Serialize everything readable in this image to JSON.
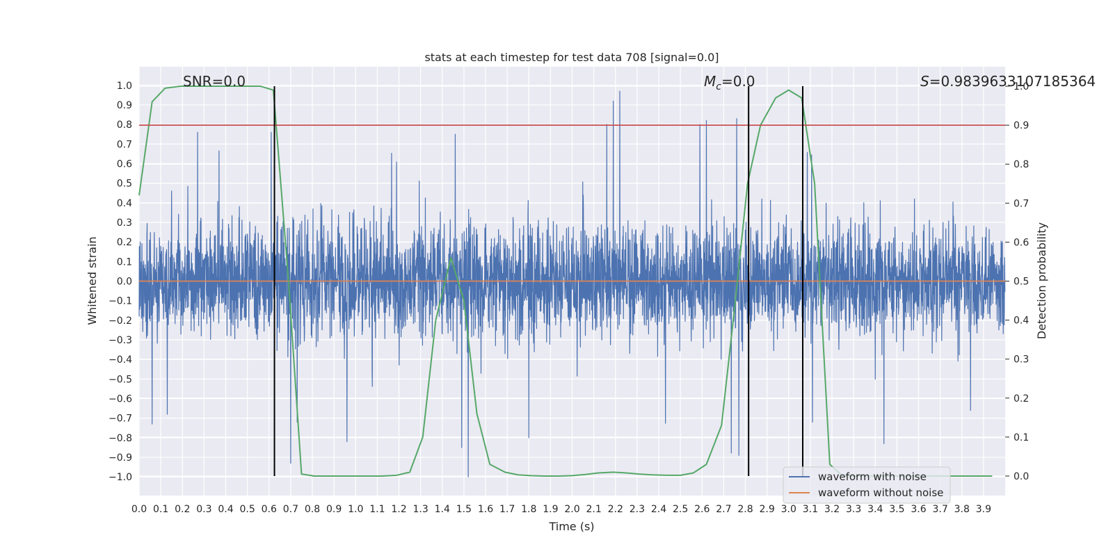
{
  "chart_data": {
    "type": "line",
    "title": "stats at each timestep for test data 708 [signal=0.0]",
    "xlabel": "Time (s)",
    "ylabel": "Whitened strain",
    "y2label": "Detection probability",
    "xlim": [
      0.0,
      4.0
    ],
    "ylim": [
      -1.095,
      1.095
    ],
    "y2lim": [
      -0.05,
      1.05
    ],
    "x_ticks": [
      "0.0",
      "0.1",
      "0.2",
      "0.3",
      "0.4",
      "0.5",
      "0.6",
      "0.7",
      "0.8",
      "0.9",
      "1.0",
      "1.1",
      "1.2",
      "1.3",
      "1.4",
      "1.5",
      "1.6",
      "1.7",
      "1.8",
      "1.9",
      "2.0",
      "2.1",
      "2.2",
      "2.3",
      "2.4",
      "2.5",
      "2.6",
      "2.7",
      "2.8",
      "2.9",
      "3.0",
      "3.1",
      "3.2",
      "3.3",
      "3.4",
      "3.5",
      "3.6",
      "3.7",
      "3.8",
      "3.9"
    ],
    "y_ticks": [
      "1.0",
      "0.9",
      "0.8",
      "0.7",
      "0.6",
      "0.5",
      "0.4",
      "0.3",
      "0.2",
      "0.1",
      "0.0",
      "−0.1",
      "−0.2",
      "−0.3",
      "−0.4",
      "−0.5",
      "−0.6",
      "−0.7",
      "−0.8",
      "−0.9",
      "−1.0"
    ],
    "y2_ticks": [
      "1.0",
      "0.9",
      "0.8",
      "0.7",
      "0.6",
      "0.5",
      "0.4",
      "0.3",
      "0.2",
      "0.1",
      "0.0"
    ],
    "annotations": [
      {
        "name": "snr",
        "text": "SNR=0.0"
      },
      {
        "name": "mc",
        "prefix": "M",
        "sub": "c",
        "suffix": "=0.0"
      },
      {
        "name": "s",
        "prefix": "S",
        "suffix": "=0.9839633107185364"
      }
    ],
    "legend": {
      "location": "lower-right",
      "entries": [
        {
          "label": "waveform with noise",
          "color": "#4c72b0"
        },
        {
          "label": "waveform without noise",
          "color": "#dd8452"
        }
      ]
    },
    "series": [
      {
        "name": "waveform with noise",
        "color": "#4c72b0",
        "kind": "noise",
        "samples": 4000,
        "amplitude_range": [
          -1.0,
          0.97
        ],
        "spikes": [
          {
            "x": 2.19,
            "y": 0.92
          },
          {
            "x": 2.22,
            "y": 0.97
          },
          {
            "x": 2.16,
            "y": 0.8
          },
          {
            "x": 2.62,
            "y": 0.82
          },
          {
            "x": 2.59,
            "y": 0.8
          },
          {
            "x": 2.76,
            "y": 0.83
          },
          {
            "x": 0.27,
            "y": 0.76
          },
          {
            "x": 0.61,
            "y": 0.76
          },
          {
            "x": 1.46,
            "y": 0.75
          },
          {
            "x": 0.7,
            "y": -0.93
          },
          {
            "x": 0.73,
            "y": -0.72
          },
          {
            "x": 1.52,
            "y": -1.0
          },
          {
            "x": 1.49,
            "y": -0.85
          },
          {
            "x": 2.77,
            "y": -0.89
          },
          {
            "x": 0.96,
            "y": -0.82
          },
          {
            "x": 1.8,
            "y": -0.8
          },
          {
            "x": 0.06,
            "y": -0.73
          },
          {
            "x": 0.13,
            "y": -0.68
          },
          {
            "x": 3.11,
            "y": -0.72
          },
          {
            "x": 3.44,
            "y": -0.83
          },
          {
            "x": 3.84,
            "y": -0.66
          }
        ]
      },
      {
        "name": "waveform without noise",
        "color": "#dd8452",
        "x": [
          0.0,
          4.0
        ],
        "y": [
          0.0,
          0.0
        ]
      },
      {
        "name": "detection probability",
        "axis": "right",
        "color": "#55a868",
        "x": [
          0.0,
          0.06,
          0.12,
          0.19,
          0.25,
          0.31,
          0.37,
          0.44,
          0.5,
          0.56,
          0.62,
          0.69,
          0.75,
          0.81,
          0.87,
          0.94,
          1.0,
          1.06,
          1.12,
          1.19,
          1.25,
          1.31,
          1.37,
          1.44,
          1.5,
          1.56,
          1.62,
          1.69,
          1.75,
          1.81,
          1.87,
          1.94,
          2.0,
          2.06,
          2.12,
          2.19,
          2.25,
          2.31,
          2.37,
          2.44,
          2.5,
          2.56,
          2.62,
          2.69,
          2.75,
          2.81,
          2.87,
          2.94,
          3.0,
          3.06,
          3.12,
          3.19,
          3.25,
          3.31,
          3.37,
          3.44,
          3.5,
          3.56,
          3.62,
          3.69,
          3.75,
          3.81,
          3.87,
          3.94
        ],
        "y": [
          0.72,
          0.96,
          0.995,
          1.0,
          1.0,
          1.0,
          1.0,
          1.0,
          1.0,
          1.0,
          0.99,
          0.5,
          0.005,
          0.0,
          0.0,
          0.0,
          0.0,
          0.0,
          0.0,
          0.002,
          0.01,
          0.1,
          0.4,
          0.56,
          0.45,
          0.16,
          0.03,
          0.01,
          0.003,
          0.001,
          0.0,
          0.0,
          0.001,
          0.004,
          0.008,
          0.01,
          0.008,
          0.005,
          0.003,
          0.002,
          0.002,
          0.008,
          0.03,
          0.13,
          0.43,
          0.75,
          0.9,
          0.97,
          0.99,
          0.97,
          0.75,
          0.03,
          0.0,
          0.0,
          0.0,
          0.0,
          0.0,
          0.0,
          0.0,
          0.0,
          0.0,
          0.0,
          0.0,
          0.0
        ]
      }
    ],
    "hlines": [
      {
        "name": "threshold",
        "axis": "right",
        "y": 0.9,
        "color": "#c44e52"
      }
    ],
    "vlines": [
      {
        "x": 0.625,
        "color": "#000000"
      },
      {
        "x": 2.815,
        "color": "#000000"
      },
      {
        "x": 3.065,
        "color": "#000000"
      }
    ]
  }
}
